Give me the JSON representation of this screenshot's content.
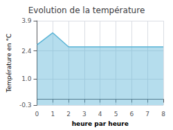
{
  "chart_data": {
    "type": "area",
    "title": "Evolution de la température",
    "xlabel": "heure par heure",
    "ylabel": "Température en °C",
    "x": [
      0,
      1,
      2,
      3,
      4,
      5,
      6,
      7,
      8
    ],
    "values": [
      2.7,
      3.3,
      2.6,
      2.6,
      2.6,
      2.6,
      2.6,
      2.6,
      2.6
    ],
    "color": "#5ab4d6",
    "xlim": [
      0,
      8
    ],
    "xticks": [
      0,
      1,
      2,
      3,
      4,
      5,
      6,
      7,
      8
    ],
    "ylim": [
      -0.3,
      3.9
    ],
    "yticks": [
      -0.3,
      {
        "value": 1.0,
        "label": "1.0"
      },
      2.4,
      3.9
    ],
    "grid": true
  }
}
